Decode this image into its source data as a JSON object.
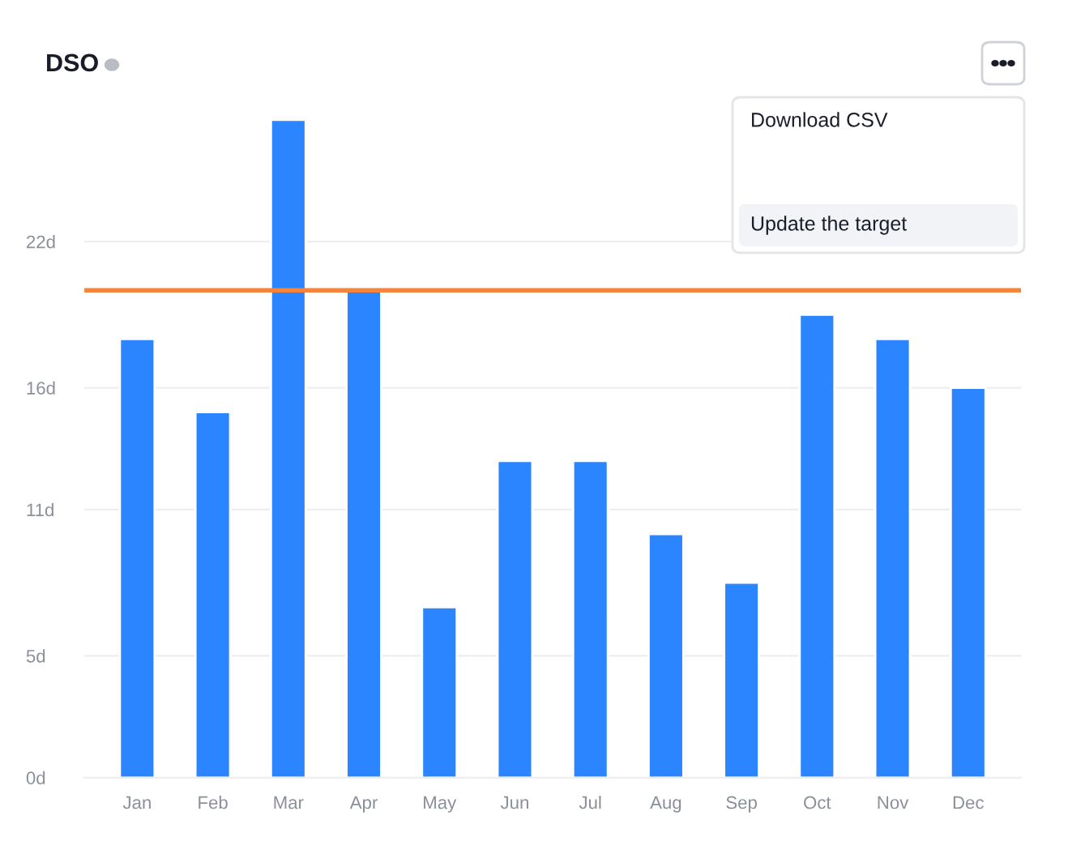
{
  "chart_data": {
    "type": "bar",
    "title": "DSO",
    "categories": [
      "Jan",
      "Feb",
      "Mar",
      "Apr",
      "May",
      "Jun",
      "Jul",
      "Aug",
      "Sep",
      "Oct",
      "Nov",
      "Dec"
    ],
    "values": [
      18,
      15,
      27,
      20,
      7,
      13,
      13,
      10,
      8,
      19,
      18,
      16
    ],
    "color": "#2a85ff",
    "ylim": [
      0,
      28
    ],
    "yticks": [
      {
        "value": 0,
        "label": "0d"
      },
      {
        "value": 5,
        "label": "5d"
      },
      {
        "value": 11,
        "label": "11d"
      },
      {
        "value": 16,
        "label": "16d"
      },
      {
        "value": 22,
        "label": "22d"
      }
    ],
    "grid": "y",
    "ref_lines": [
      {
        "axis": "y",
        "value": 20,
        "color": "#f5843c"
      }
    ],
    "annotations": [
      "Download CSV",
      "Update the target"
    ]
  }
}
